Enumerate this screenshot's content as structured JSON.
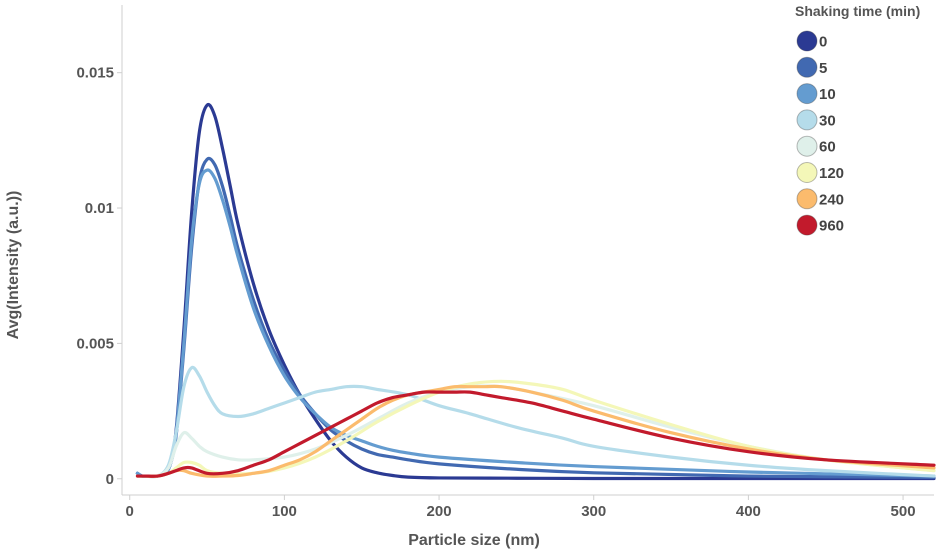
{
  "chart_data": {
    "type": "line",
    "title": "",
    "xlabel": "Particle size (nm)",
    "ylabel": "Avg(Intensity (a.u.))",
    "xlim": [
      -5,
      520
    ],
    "ylim": [
      -0.0006,
      0.0175
    ],
    "x_ticks": [
      0,
      100,
      200,
      300,
      400,
      500
    ],
    "x_tick_labels": [
      "0",
      "100",
      "200",
      "300",
      "400",
      "500"
    ],
    "y_ticks": [
      0,
      0.005,
      0.01,
      0.015
    ],
    "y_tick_labels": [
      "0",
      "0.005",
      "0.01",
      "0.015"
    ],
    "grid": false,
    "legend": {
      "title": "Shaking time (min)",
      "position": "top-right"
    },
    "series": [
      {
        "name": "0",
        "color": "#2b3a93",
        "x": [
          5,
          8,
          12,
          18,
          22,
          26,
          30,
          35,
          40,
          45,
          50,
          55,
          60,
          65,
          70,
          80,
          90,
          100,
          110,
          120,
          130,
          140,
          150,
          160,
          170,
          180,
          200,
          250,
          300,
          400,
          520
        ],
        "y": [
          0.0002,
          0.0001,
          0.0001,
          0.0001,
          0.0002,
          0.0005,
          0.0018,
          0.0055,
          0.0098,
          0.0128,
          0.0138,
          0.0134,
          0.0122,
          0.0108,
          0.0094,
          0.0072,
          0.0055,
          0.0042,
          0.0031,
          0.0022,
          0.0014,
          0.0008,
          0.0004,
          0.00022,
          0.00012,
          6e-05,
          3e-05,
          2e-05,
          1e-05,
          1e-05,
          1e-05
        ]
      },
      {
        "name": "5",
        "color": "#4169b1",
        "x": [
          5,
          8,
          12,
          18,
          22,
          26,
          30,
          35,
          40,
          45,
          50,
          55,
          60,
          65,
          70,
          80,
          90,
          100,
          110,
          120,
          130,
          140,
          150,
          160,
          170,
          180,
          200,
          250,
          300,
          400,
          520
        ],
        "y": [
          0.0002,
          0.0001,
          0.0001,
          0.0001,
          0.0002,
          0.0005,
          0.0016,
          0.0048,
          0.0085,
          0.011,
          0.0118,
          0.0116,
          0.0108,
          0.0097,
          0.0085,
          0.0066,
          0.0051,
          0.004,
          0.0031,
          0.0024,
          0.0018,
          0.0014,
          0.0011,
          0.0009,
          0.0008,
          0.0007,
          0.00055,
          0.00035,
          0.00022,
          0.0001,
          5e-05
        ]
      },
      {
        "name": "10",
        "color": "#649cd0",
        "x": [
          5,
          8,
          12,
          18,
          22,
          26,
          30,
          35,
          40,
          45,
          50,
          55,
          60,
          65,
          70,
          80,
          90,
          100,
          110,
          120,
          130,
          140,
          150,
          160,
          170,
          180,
          200,
          250,
          300,
          400,
          520
        ],
        "y": [
          0.0002,
          0.0001,
          0.0001,
          0.0001,
          0.0002,
          0.0005,
          0.0017,
          0.005,
          0.0088,
          0.0109,
          0.0114,
          0.0111,
          0.0103,
          0.0093,
          0.0082,
          0.0063,
          0.0049,
          0.0038,
          0.003,
          0.0024,
          0.0019,
          0.0016,
          0.0014,
          0.0012,
          0.00105,
          0.00095,
          0.0008,
          0.0006,
          0.00045,
          0.00025,
          0.0001
        ]
      },
      {
        "name": "30",
        "color": "#b5dcea",
        "x": [
          5,
          10,
          18,
          25,
          30,
          35,
          40,
          45,
          50,
          55,
          60,
          70,
          80,
          90,
          100,
          110,
          120,
          130,
          140,
          150,
          160,
          180,
          200,
          220,
          250,
          280,
          300,
          350,
          400,
          450,
          520
        ],
        "y": [
          0.0001,
          0.0001,
          0.0001,
          0.0005,
          0.0017,
          0.0034,
          0.0041,
          0.0038,
          0.0032,
          0.0027,
          0.0024,
          0.0023,
          0.0024,
          0.0026,
          0.0028,
          0.003,
          0.0032,
          0.0033,
          0.0034,
          0.0034,
          0.0033,
          0.0031,
          0.0027,
          0.0024,
          0.0019,
          0.0015,
          0.0012,
          0.0008,
          0.0005,
          0.0003,
          0.0001
        ]
      },
      {
        "name": "60",
        "color": "#dff0ea",
        "x": [
          5,
          10,
          18,
          25,
          30,
          35,
          40,
          45,
          50,
          60,
          70,
          80,
          100,
          120,
          140,
          160,
          180,
          200,
          220,
          240,
          260,
          300,
          350,
          400,
          450,
          520
        ],
        "y": [
          0.0001,
          0.0001,
          0.0001,
          0.0004,
          0.0012,
          0.0017,
          0.0015,
          0.0012,
          0.001,
          0.0008,
          0.0007,
          0.0007,
          0.0008,
          0.0011,
          0.0016,
          0.0022,
          0.0028,
          0.0032,
          0.0034,
          0.0034,
          0.0032,
          0.0027,
          0.0019,
          0.0012,
          0.0007,
          0.0003
        ]
      },
      {
        "name": "120",
        "color": "#f4f7b8",
        "x": [
          5,
          10,
          18,
          25,
          30,
          35,
          40,
          45,
          50,
          60,
          80,
          100,
          120,
          140,
          160,
          180,
          200,
          220,
          240,
          260,
          280,
          300,
          350,
          400,
          450,
          520
        ],
        "y": [
          0.0001,
          0.0001,
          0.0001,
          0.0002,
          0.0004,
          0.0006,
          0.0006,
          0.0005,
          0.0003,
          0.0002,
          0.0002,
          0.0004,
          0.0008,
          0.0014,
          0.0021,
          0.0027,
          0.0032,
          0.0035,
          0.0036,
          0.0035,
          0.0033,
          0.0029,
          0.002,
          0.0012,
          0.0007,
          0.0003
        ]
      },
      {
        "name": "240",
        "color": "#fbbb6d",
        "x": [
          5,
          10,
          18,
          25,
          30,
          35,
          40,
          50,
          60,
          70,
          80,
          90,
          100,
          110,
          120,
          130,
          140,
          150,
          160,
          170,
          180,
          190,
          200,
          210,
          220,
          230,
          240,
          260,
          280,
          300,
          350,
          400,
          450,
          520
        ],
        "y": [
          0.0001,
          0.0001,
          0.0001,
          0.0002,
          0.0003,
          0.0003,
          0.0002,
          0.0001,
          0.0001,
          0.00012,
          0.0002,
          0.0003,
          0.0005,
          0.0007,
          0.001,
          0.0014,
          0.0018,
          0.0022,
          0.0026,
          0.0029,
          0.0031,
          0.0032,
          0.0033,
          0.0034,
          0.0034,
          0.0034,
          0.0034,
          0.0032,
          0.0029,
          0.0025,
          0.0017,
          0.0011,
          0.0007,
          0.0004
        ]
      },
      {
        "name": "960",
        "color": "#c21a2c",
        "x": [
          5,
          10,
          18,
          25,
          30,
          35,
          40,
          50,
          60,
          70,
          80,
          90,
          100,
          110,
          120,
          130,
          140,
          150,
          160,
          170,
          180,
          190,
          200,
          210,
          220,
          230,
          240,
          260,
          280,
          300,
          350,
          400,
          450,
          520
        ],
        "y": [
          0.0001,
          0.0001,
          0.0001,
          0.0002,
          0.0003,
          0.0004,
          0.0004,
          0.0002,
          0.0002,
          0.0003,
          0.0005,
          0.0007,
          0.001,
          0.0013,
          0.0016,
          0.0019,
          0.0022,
          0.0025,
          0.0028,
          0.003,
          0.0031,
          0.0032,
          0.0032,
          0.0032,
          0.0032,
          0.0031,
          0.003,
          0.0028,
          0.0025,
          0.0022,
          0.0015,
          0.001,
          0.0007,
          0.0005
        ]
      }
    ]
  }
}
